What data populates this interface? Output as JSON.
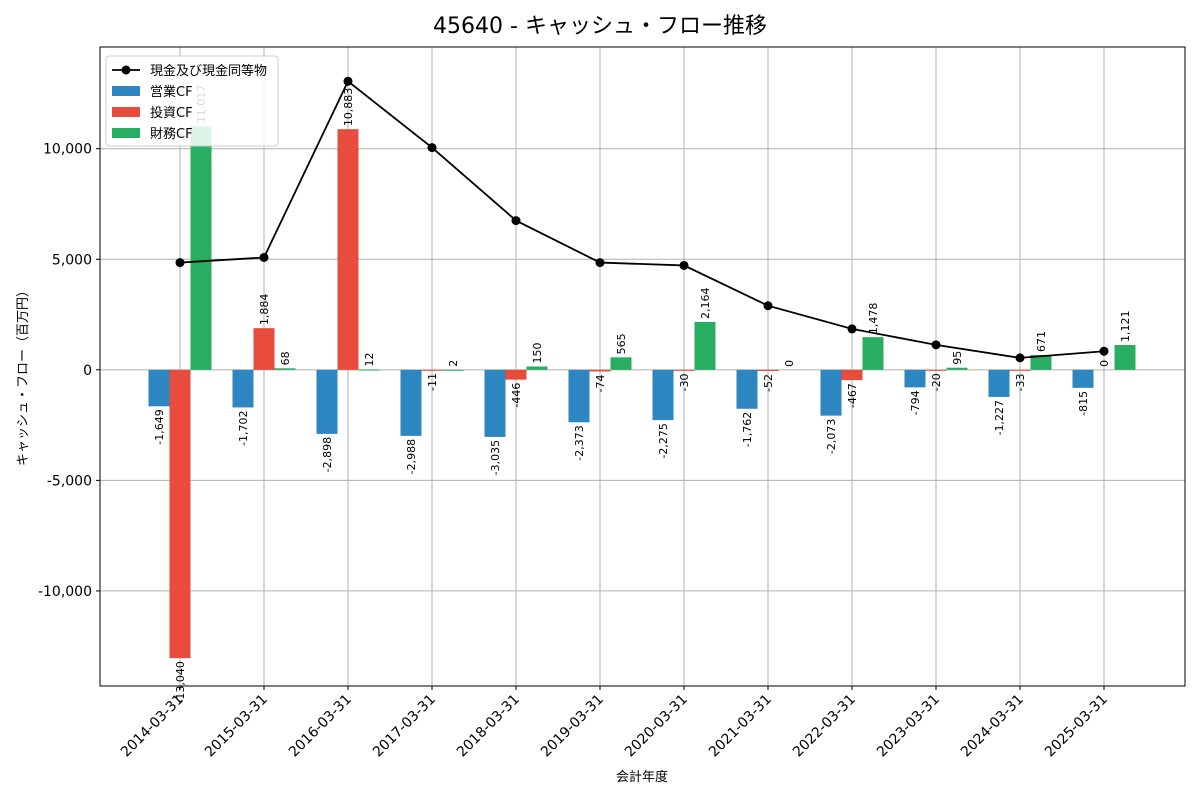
{
  "chart_data": {
    "type": "bar",
    "title": "45640 - キャッシュ・フロー推移",
    "xlabel": "会計年度",
    "ylabel": "キャッシュ・フロー（百万円）",
    "categories": [
      "2014-03-31",
      "2015-03-31",
      "2016-03-31",
      "2017-03-31",
      "2018-03-31",
      "2019-03-31",
      "2020-03-31",
      "2021-03-31",
      "2022-03-31",
      "2023-03-31",
      "2024-03-31",
      "2025-03-31"
    ],
    "series": [
      {
        "name": "営業CF",
        "kind": "bar",
        "color": "#2e86c1",
        "values": [
          -1649,
          -1702,
          -2898,
          -2988,
          -3035,
          -2373,
          -2275,
          -1762,
          -2073,
          -794,
          -1227,
          -815
        ]
      },
      {
        "name": "投資CF",
        "kind": "bar",
        "color": "#e74c3c",
        "values": [
          -13040,
          1884,
          10883,
          -11,
          -446,
          -74,
          -30,
          -52,
          -467,
          -20,
          -33,
          0
        ]
      },
      {
        "name": "財務CF",
        "kind": "bar",
        "color": "#27ae60",
        "values": [
          11017,
          68,
          12,
          2,
          150,
          565,
          2164,
          0,
          1478,
          95,
          671,
          1121
        ]
      },
      {
        "name": "現金及び現金同等物",
        "kind": "line",
        "color": "#000000",
        "values": [
          4850,
          5080,
          13050,
          10050,
          6750,
          4850,
          4720,
          2900,
          1850,
          1130,
          540,
          840
        ]
      }
    ],
    "ylim": [
      -14300,
      14600
    ],
    "yticks": [
      -10000,
      -5000,
      0,
      5000,
      10000
    ],
    "ytick_labels": [
      "-10,000",
      "-5,000",
      "0",
      "5,000",
      "10,000"
    ],
    "grid": true,
    "legend_position": "top-left"
  }
}
